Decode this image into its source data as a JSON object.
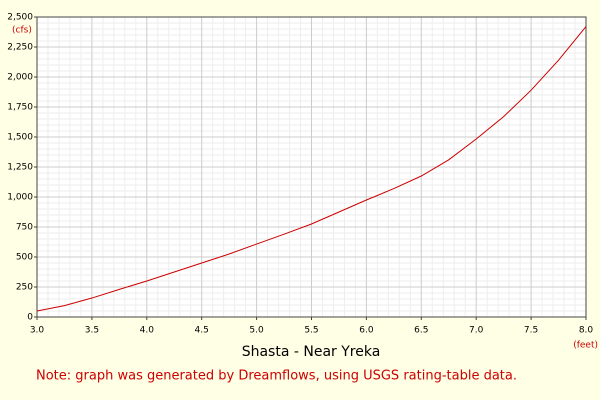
{
  "chart_data": {
    "type": "line",
    "title": "Shasta - Near Yreka",
    "x_unit": "(feet)",
    "y_unit": "(cfs)",
    "note": "Note: graph was generated by Dreamflows, using USGS rating-table data.",
    "x": [
      3.0,
      3.25,
      3.5,
      3.75,
      4.0,
      4.25,
      4.5,
      4.75,
      5.0,
      5.25,
      5.5,
      5.75,
      6.0,
      6.25,
      6.5,
      6.75,
      7.0,
      7.25,
      7.5,
      7.75,
      8.0
    ],
    "series": [
      {
        "name": "Shasta - Near Yreka",
        "color": "#cc0000",
        "values": [
          50,
          95,
          158,
          230,
          300,
          375,
          450,
          525,
          608,
          690,
          775,
          875,
          975,
          1070,
          1175,
          1310,
          1483,
          1670,
          1890,
          2140,
          2420
        ]
      }
    ],
    "xlim": [
      3.0,
      8.0
    ],
    "xticks": [
      {
        "value": 3.0,
        "label": "3.0"
      },
      3.5,
      {
        "value": 4.0,
        "label": "4.0"
      },
      4.5,
      {
        "value": 5.0,
        "label": "5.0"
      },
      5.5,
      {
        "value": 6.0,
        "label": "6.0"
      },
      6.5,
      {
        "value": 7.0,
        "label": "7.0"
      },
      7.5,
      {
        "value": 8.0,
        "label": "8.0"
      }
    ],
    "ylim": [
      0,
      2500
    ],
    "yticks": [
      0,
      250,
      500,
      750,
      {
        "value": 1000,
        "label": "1,000"
      },
      {
        "value": 1250,
        "label": "1,250"
      },
      {
        "value": 1500,
        "label": "1,500"
      },
      {
        "value": 1750,
        "label": "1,750"
      },
      {
        "value": 2000,
        "label": "2,000"
      },
      {
        "value": 2250,
        "label": "2,250"
      },
      {
        "value": 2500,
        "label": "2,500"
      }
    ],
    "grid": true
  }
}
